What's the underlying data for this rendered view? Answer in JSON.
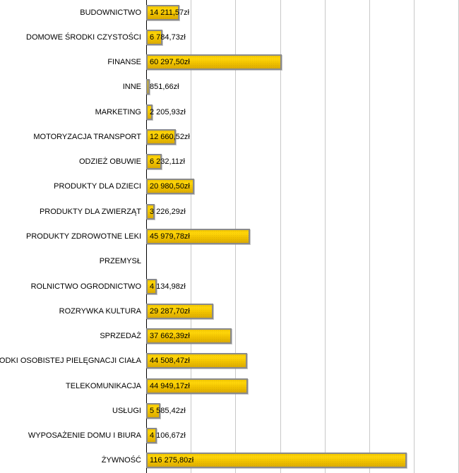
{
  "chart_data": {
    "type": "bar",
    "orientation": "horizontal",
    "title": "",
    "xlabel": "",
    "ylabel": "",
    "unit": "zł",
    "xlim": [
      0,
      140000
    ],
    "grid_interval": 20000,
    "grid": true,
    "legend": false,
    "categories": [
      "BUDOWNICTWO",
      "DOMOWE ŚRODKI CZYSTOŚCI",
      "FINANSE",
      "INNE",
      "MARKETING",
      "MOTORYZACJA TRANSPORT",
      "ODZIEŻ OBUWIE",
      "PRODUKTY DLA DZIECI",
      "PRODUKTY DLA ZWIERZĄT",
      "PRODUKTY ZDROWOTNE LEKI",
      "PRZEMYSŁ",
      "ROLNICTWO OGRODNICTWO",
      "ROZRYWKA KULTURA",
      "SPRZEDAŻ",
      "ŚRODKI OSOBISTEJ PIELĘGNACJI CIAŁA",
      "TELEKOMUNIKACJA",
      "USŁUGI",
      "WYPOSAŻENIE DOMU I BIURA",
      "ŻYWNOŚĆ"
    ],
    "values": [
      14211.57,
      6784.73,
      60297.5,
      851.66,
      2205.93,
      12660.52,
      6232.11,
      20980.5,
      3226.29,
      45979.78,
      0,
      4134.98,
      29287.7,
      37662.39,
      44508.47,
      44949.17,
      5585.42,
      4106.67,
      116275.8
    ],
    "value_labels": [
      "14 211,57zł",
      "6 784,73zł",
      "60 297,50zł",
      "851,66zł",
      "2 205,93zł",
      "12 660,52zł",
      "6 232,11zł",
      "20 980,50zł",
      "3 226,29zł",
      "45 979,78zł",
      "",
      "4 134,98zł",
      "29 287,70zł",
      "37 662,39zł",
      "44 508,47zł",
      "44 949,17zł",
      "5 585,42zł",
      "4 106,67zł",
      "116 275,80zł"
    ]
  },
  "style": {
    "background": "#ffffff",
    "text": "#000000",
    "axis": "#000000",
    "gridline": "#c8c8c8",
    "bar_border": "#8a8a8a",
    "bar_top_edge": "#f3c700",
    "bar_top": "#ffd60a",
    "bar_mid": "#f2c400",
    "bar_bottom": "#dcab00"
  }
}
